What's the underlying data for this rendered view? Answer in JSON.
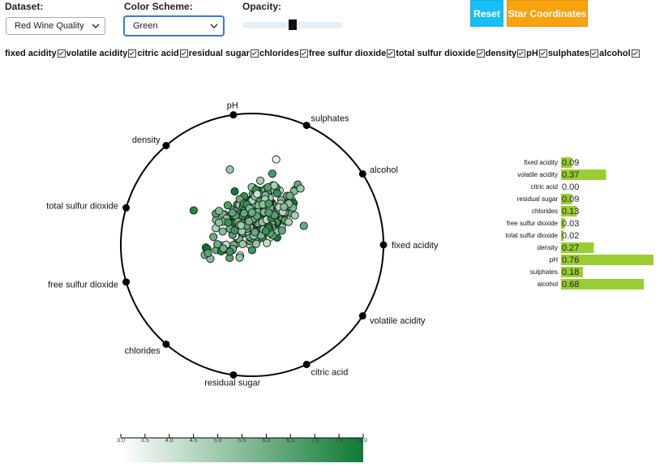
{
  "controls": {
    "dataset_label": "Dataset:",
    "dataset_value": "Red Wine Quality",
    "color_scheme_label": "Color Scheme:",
    "color_scheme_value": "Green",
    "opacity_label": "Opacity:",
    "opacity_value": 0.5,
    "reset_label": "Reset",
    "star_label": "Star Coordinates"
  },
  "attributes": [
    "fixed acidity",
    "volatile acidity",
    "citric acid",
    "residual sugar",
    "chlorides",
    "free sulfur dioxide",
    "total sulfur dioxide",
    "density",
    "pH",
    "sulphates",
    "alcohol"
  ],
  "chart_data": [
    {
      "type": "scatter",
      "axes": [
        {
          "name": "fixed acidity",
          "angle_deg": 0
        },
        {
          "name": "volatile acidity",
          "angle_deg": 32.7
        },
        {
          "name": "citric acid",
          "angle_deg": 65.5
        },
        {
          "name": "residual sugar",
          "angle_deg": 98.2
        },
        {
          "name": "chlorides",
          "angle_deg": 130.9
        },
        {
          "name": "free sulfur dioxide",
          "angle_deg": 163.6
        },
        {
          "name": "total sulfur dioxide",
          "angle_deg": 196.4
        },
        {
          "name": "density",
          "angle_deg": 229.1
        },
        {
          "name": "pH",
          "angle_deg": 261.8
        },
        {
          "name": "sulphates",
          "angle_deg": 294.5
        },
        {
          "name": "alcohol",
          "angle_deg": 327.3
        }
      ],
      "note_points": "dense cloud of wine samples near center-upper area, colored by quality"
    },
    {
      "type": "bar",
      "categories": [
        "fixed acidity",
        "volatile acidity",
        "citric acid",
        "residual sugar",
        "chlorides",
        "free sulfur dioxide",
        "total sulfur dioxide",
        "density",
        "pH",
        "sulphates",
        "alcohol"
      ],
      "values": [
        0.09,
        0.37,
        0.0,
        0.09,
        0.13,
        0.03,
        0.02,
        0.27,
        0.76,
        0.18,
        0.68
      ],
      "labels": [
        "0.09",
        "0.37",
        "0.00",
        "0.09",
        "0.13",
        "0.03",
        "0.02",
        "0.27",
        "0.76",
        "0.18",
        "0.68"
      ],
      "bar_color": "#9acd32",
      "xlim": [
        0,
        0.76
      ]
    },
    {
      "type": "heatmap",
      "ticks": [
        "3.0",
        "3.5",
        "4.0",
        "4.5",
        "5.0",
        "5.5",
        "6.0",
        "6.5",
        "7.0",
        "7.5",
        "8.0"
      ],
      "range": [
        3.0,
        8.0
      ],
      "color_low": "#ffffff",
      "color_high": "#0f7a35"
    }
  ]
}
